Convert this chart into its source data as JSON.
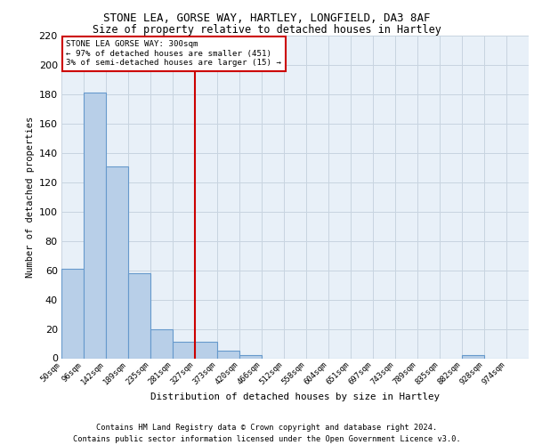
{
  "title_line1": "STONE LEA, GORSE WAY, HARTLEY, LONGFIELD, DA3 8AF",
  "title_line2": "Size of property relative to detached houses in Hartley",
  "xlabel": "Distribution of detached houses by size in Hartley",
  "ylabel": "Number of detached properties",
  "bin_labels": [
    "50sqm",
    "96sqm",
    "142sqm",
    "189sqm",
    "235sqm",
    "281sqm",
    "327sqm",
    "373sqm",
    "420sqm",
    "466sqm",
    "512sqm",
    "558sqm",
    "604sqm",
    "651sqm",
    "697sqm",
    "743sqm",
    "789sqm",
    "835sqm",
    "882sqm",
    "928sqm",
    "974sqm"
  ],
  "bar_heights": [
    61,
    181,
    131,
    58,
    20,
    11,
    11,
    5,
    2,
    0,
    0,
    0,
    0,
    0,
    0,
    0,
    0,
    0,
    2,
    0,
    0
  ],
  "bar_color": "#b8cfe8",
  "bar_edge_color": "#6699cc",
  "grid_color": "#c8d4e0",
  "background_color": "#e8f0f8",
  "red_line_bin_index": 6,
  "annotation_line1": "STONE LEA GORSE WAY: 300sqm",
  "annotation_line2": "← 97% of detached houses are smaller (451)",
  "annotation_line3": "3% of semi-detached houses are larger (15) →",
  "annotation_box_facecolor": "#ffffff",
  "annotation_box_edgecolor": "#cc0000",
  "footer_line1": "Contains HM Land Registry data © Crown copyright and database right 2024.",
  "footer_line2": "Contains public sector information licensed under the Open Government Licence v3.0.",
  "ylim_max": 220,
  "ytick_step": 20
}
